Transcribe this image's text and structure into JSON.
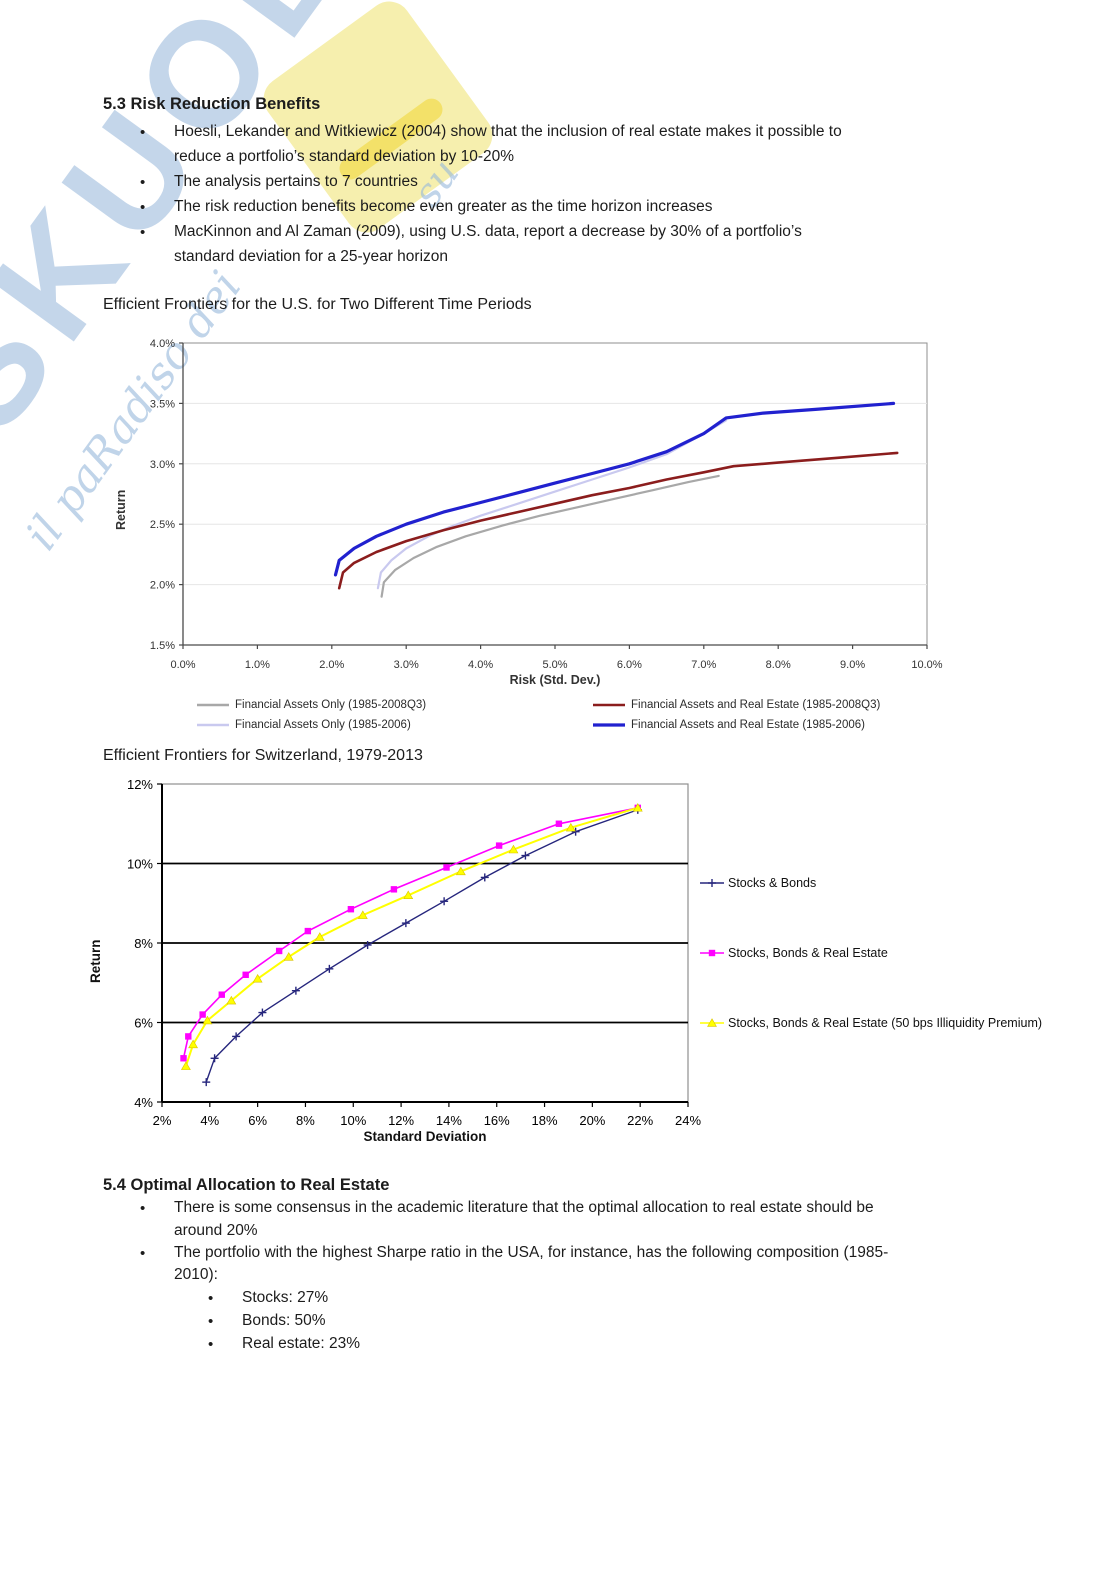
{
  "watermark": {
    "brand_text": "SKUOLA",
    "tagline_main": "il paRadiso dei",
    "tagline_fragment": "su",
    "colors": {
      "letters": "#94b5d8",
      "note": "#f6efae",
      "note_accent": "#f2dc52"
    }
  },
  "doc": {
    "section_53": {
      "heading": "5.3 Risk Reduction Benefits",
      "bullets": [
        {
          "lines": [
            "Hoesli, Lekander and Witkiewicz (2004) show that the inclusion of real estate makes it possible to",
            "reduce a portfolio’s standard deviation by 10-20%"
          ]
        },
        {
          "lines": [
            "The analysis pertains to 7 countries"
          ]
        },
        {
          "lines": [
            "The risk reduction benefits become even greater as the time horizon increases"
          ]
        },
        {
          "lines": [
            "MacKinnon and Al Zaman (2009), using U.S. data, report a decrease by 30% of a portfolio’s",
            "standard deviation for a 25-year horizon"
          ]
        }
      ]
    },
    "caption_chart1": "Efficient Frontiers for the U.S. for Two Different Time Periods",
    "caption_chart2": "Efficient Frontiers for Switzerland, 1979-2013",
    "section_54": {
      "heading": "5.4 Optimal Allocation to Real Estate",
      "bullets": [
        {
          "lines": [
            "There is some consensus in the academic literature that the optimal allocation to real estate should be",
            "around 20%"
          ]
        },
        {
          "lines": [
            "The portfolio with the highest Sharpe ratio in the USA, for instance, has the following composition (1985-",
            "2010):"
          ]
        }
      ],
      "sub_bullets": [
        "Stocks: 27%",
        "Bonds: 50%",
        "Real estate: 23%"
      ]
    }
  },
  "chart_data": [
    {
      "type": "line",
      "title": "Efficient Frontiers for the U.S. for Two Different Time Periods",
      "xlabel": "Risk (Std. Dev.)",
      "ylabel": "Return",
      "xlim": [
        0,
        10
      ],
      "ylim": [
        1.5,
        4.0
      ],
      "x_ticks": [
        0,
        1,
        2,
        3,
        4,
        5,
        6,
        7,
        8,
        9,
        10
      ],
      "x_tick_labels": [
        "0.0%",
        "1.0%",
        "2.0%",
        "3.0%",
        "4.0%",
        "5.0%",
        "6.0%",
        "7.0%",
        "8.0%",
        "9.0%",
        "10.0%"
      ],
      "y_ticks": [
        1.5,
        2.0,
        2.5,
        3.0,
        3.5,
        4.0
      ],
      "y_tick_labels": [
        "1.5%",
        "2.0%",
        "2.5%",
        "3.0%",
        "3.5%",
        "4.0%"
      ],
      "grid": "horizontal-light",
      "legend_position": "bottom-two-columns",
      "series": [
        {
          "name": "Financial Assets Only (1985-2008Q3)",
          "color": "#a8a8a8",
          "width": 2.2,
          "marker": "none",
          "points": [
            [
              2.67,
              1.9
            ],
            [
              2.7,
              2.02
            ],
            [
              2.85,
              2.12
            ],
            [
              3.1,
              2.22
            ],
            [
              3.4,
              2.31
            ],
            [
              3.8,
              2.4
            ],
            [
              4.3,
              2.49
            ],
            [
              4.8,
              2.57
            ],
            [
              5.3,
              2.64
            ],
            [
              5.8,
              2.71
            ],
            [
              6.3,
              2.78
            ],
            [
              6.8,
              2.85
            ],
            [
              7.2,
              2.9
            ]
          ]
        },
        {
          "name": "Financial Assets Only (1985-2006)",
          "color": "#c9c9ef",
          "width": 2.2,
          "marker": "none",
          "points": [
            [
              2.62,
              1.97
            ],
            [
              2.66,
              2.1
            ],
            [
              2.8,
              2.2
            ],
            [
              3.0,
              2.3
            ],
            [
              3.3,
              2.4
            ],
            [
              3.6,
              2.48
            ],
            [
              4.0,
              2.57
            ],
            [
              4.5,
              2.67
            ],
            [
              5.0,
              2.77
            ],
            [
              5.5,
              2.87
            ],
            [
              6.0,
              2.97
            ],
            [
              6.5,
              3.08
            ],
            [
              7.0,
              3.25
            ],
            [
              7.3,
              3.36
            ]
          ]
        },
        {
          "name": "Financial Assets and Real Estate (1985-2008Q3)",
          "color": "#8b1d1d",
          "width": 2.6,
          "marker": "none",
          "points": [
            [
              2.1,
              1.97
            ],
            [
              2.15,
              2.1
            ],
            [
              2.3,
              2.18
            ],
            [
              2.6,
              2.27
            ],
            [
              3.0,
              2.36
            ],
            [
              3.5,
              2.45
            ],
            [
              4.0,
              2.53
            ],
            [
              4.5,
              2.6
            ],
            [
              5.0,
              2.67
            ],
            [
              5.5,
              2.74
            ],
            [
              6.0,
              2.8
            ],
            [
              6.5,
              2.87
            ],
            [
              7.0,
              2.93
            ],
            [
              7.4,
              2.98
            ],
            [
              8.0,
              3.01
            ],
            [
              8.8,
              3.05
            ],
            [
              9.6,
              3.09
            ]
          ]
        },
        {
          "name": "Financial Assets and Real Estate (1985-2006)",
          "color": "#2121cf",
          "width": 3.2,
          "marker": "none",
          "points": [
            [
              2.05,
              2.08
            ],
            [
              2.1,
              2.2
            ],
            [
              2.3,
              2.3
            ],
            [
              2.6,
              2.4
            ],
            [
              3.0,
              2.5
            ],
            [
              3.5,
              2.6
            ],
            [
              4.0,
              2.68
            ],
            [
              4.5,
              2.76
            ],
            [
              5.0,
              2.84
            ],
            [
              5.5,
              2.92
            ],
            [
              6.0,
              3.0
            ],
            [
              6.5,
              3.1
            ],
            [
              7.0,
              3.25
            ],
            [
              7.3,
              3.38
            ],
            [
              7.8,
              3.42
            ],
            [
              8.5,
              3.45
            ],
            [
              9.55,
              3.5
            ]
          ]
        }
      ]
    },
    {
      "type": "line",
      "title": "Efficient Frontiers for Switzerland, 1979-2013",
      "xlabel": "Standard Deviation",
      "ylabel": "Return",
      "xlim": [
        2,
        24
      ],
      "ylim": [
        4,
        12
      ],
      "x_ticks": [
        2,
        4,
        6,
        8,
        10,
        12,
        14,
        16,
        18,
        20,
        22,
        24
      ],
      "x_tick_labels": [
        "2%",
        "4%",
        "6%",
        "8%",
        "10%",
        "12%",
        "14%",
        "16%",
        "18%",
        "20%",
        "22%",
        "24%"
      ],
      "y_ticks": [
        4,
        6,
        8,
        10,
        12
      ],
      "y_tick_labels": [
        "4%",
        "6%",
        "8%",
        "10%",
        "12%"
      ],
      "grid_y_dark": [
        6,
        8,
        10
      ],
      "legend_position": "right",
      "series": [
        {
          "name": "Stocks & Bonds",
          "color": "#26267d",
          "width": 1.4,
          "marker": "plus",
          "points": [
            [
              3.85,
              4.5
            ],
            [
              4.2,
              5.1
            ],
            [
              5.1,
              5.65
            ],
            [
              6.2,
              6.25
            ],
            [
              7.6,
              6.8
            ],
            [
              9.0,
              7.35
            ],
            [
              10.6,
              7.95
            ],
            [
              12.2,
              8.5
            ],
            [
              13.8,
              9.05
            ],
            [
              15.5,
              9.65
            ],
            [
              17.2,
              10.2
            ],
            [
              19.3,
              10.8
            ],
            [
              21.9,
              11.35
            ]
          ]
        },
        {
          "name": "Stocks, Bonds & Real Estate",
          "color": "#ff00ff",
          "width": 1.6,
          "marker": "square",
          "points": [
            [
              2.9,
              5.1
            ],
            [
              3.1,
              5.65
            ],
            [
              3.7,
              6.2
            ],
            [
              4.5,
              6.7
            ],
            [
              5.5,
              7.2
            ],
            [
              6.9,
              7.8
            ],
            [
              8.1,
              8.3
            ],
            [
              9.9,
              8.85
            ],
            [
              11.7,
              9.35
            ],
            [
              13.9,
              9.9
            ],
            [
              16.1,
              10.45
            ],
            [
              18.6,
              11.0
            ],
            [
              21.9,
              11.4
            ]
          ]
        },
        {
          "name": "Stocks, Bonds & Real Estate (50 bps Illiquidity Premium)",
          "color": "#ffff00",
          "width": 2.0,
          "marker": "triangle",
          "points": [
            [
              3.0,
              4.9
            ],
            [
              3.3,
              5.45
            ],
            [
              3.9,
              6.05
            ],
            [
              4.9,
              6.55
            ],
            [
              6.0,
              7.1
            ],
            [
              7.3,
              7.65
            ],
            [
              8.6,
              8.15
            ],
            [
              10.4,
              8.7
            ],
            [
              12.3,
              9.2
            ],
            [
              14.5,
              9.8
            ],
            [
              16.7,
              10.35
            ],
            [
              19.1,
              10.9
            ],
            [
              21.9,
              11.4
            ]
          ]
        }
      ]
    }
  ]
}
